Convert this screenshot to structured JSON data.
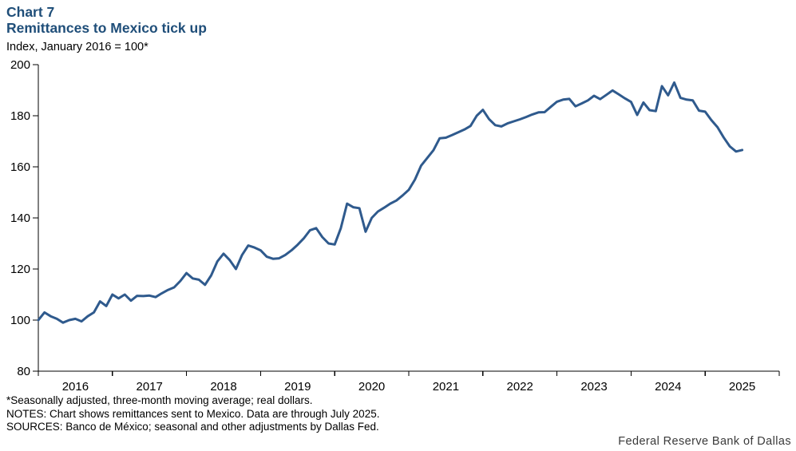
{
  "header": {
    "chart_label": "Chart 7",
    "title": "Remittances to Mexico tick up",
    "subtitle": "Index, January 2016 = 100*"
  },
  "footer": {
    "footnote": "*Seasonally adjusted, three-month moving average; real dollars.",
    "notes": "NOTES: Chart shows remittances sent to Mexico.  Data are through July 2025.",
    "sources": "SOURCES: Banco de México; seasonal and other adjustments by Dallas Fed.",
    "branding": "Federal Reserve Bank of Dallas"
  },
  "colors": {
    "line": "#2f5a8d",
    "title": "#1f4e79",
    "axis": "#000000",
    "text": "#000000",
    "branding": "#3a3a3a"
  },
  "chart_data": {
    "type": "line",
    "title": "Remittances to Mexico tick up",
    "ylabel": "Index, January 2016 = 100*",
    "xlabel": "",
    "ylim": [
      80,
      200
    ],
    "y_ticks": [
      80,
      100,
      120,
      140,
      160,
      180,
      200
    ],
    "x_tick_labels": [
      "2016",
      "2017",
      "2018",
      "2019",
      "2020",
      "2021",
      "2022",
      "2023",
      "2024",
      "2025"
    ],
    "x_start_month": "2016-01",
    "x_end_month": "2025-07",
    "grid": false,
    "legend": "none",
    "series": [
      {
        "name": "Remittances to Mexico (index, Jan 2016 = 100)",
        "frequency": "monthly",
        "values": [
          100,
          103,
          101.5,
          100.5,
          99,
          100,
          100.5,
          99.5,
          101.5,
          103,
          107.3,
          105.5,
          110,
          108.5,
          110,
          107.6,
          109.5,
          109.4,
          109.6,
          109,
          110.5,
          111.8,
          112.8,
          115.3,
          118.4,
          116.3,
          115.8,
          113.8,
          117.5,
          123,
          126,
          123.5,
          120,
          125.5,
          129.2,
          128.4,
          127.3,
          124.8,
          124,
          124.2,
          125.5,
          127.3,
          129.5,
          132,
          135.2,
          136,
          132.5,
          130,
          129.6,
          136,
          145.6,
          144.2,
          143.8,
          134.6,
          140,
          142.5,
          144,
          145.6,
          146.8,
          148.8,
          151,
          155,
          160.5,
          163.5,
          166.5,
          171.2,
          171.4,
          172.4,
          173.5,
          174.6,
          176,
          180,
          182.3,
          178.7,
          176.3,
          175.8,
          177,
          177.8,
          178.6,
          179.5,
          180.5,
          181.3,
          181.4,
          183.5,
          185.5,
          186.3,
          186.6,
          183.7,
          184.8,
          186,
          187.8,
          186.5,
          188.2,
          189.9,
          188.4,
          186.8,
          185.4,
          180.3,
          185.2,
          182.2,
          181.8,
          191.6,
          188,
          193,
          187,
          186.3,
          186,
          182,
          181.6,
          178.3,
          175.5,
          171.5,
          168,
          166,
          166.6
        ]
      }
    ]
  }
}
